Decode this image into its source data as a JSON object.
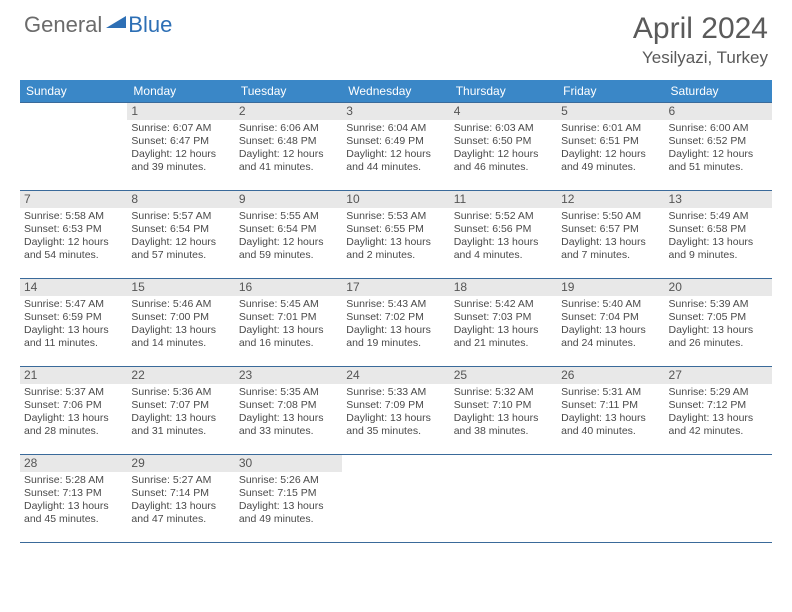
{
  "logo": {
    "text1": "General",
    "text2": "Blue"
  },
  "title": "April 2024",
  "location": "Yesilyazi, Turkey",
  "colors": {
    "header_bg": "#3a87c7",
    "header_text": "#ffffff",
    "border": "#3a6a9a",
    "daynum_bg": "#e8e8e8",
    "text": "#4a4a4a",
    "logo_gray": "#6b6b6b",
    "logo_blue": "#2d6fb5"
  },
  "weekdays": [
    "Sunday",
    "Monday",
    "Tuesday",
    "Wednesday",
    "Thursday",
    "Friday",
    "Saturday"
  ],
  "weeks": [
    [
      null,
      {
        "d": "1",
        "sr": "Sunrise: 6:07 AM",
        "ss": "Sunset: 6:47 PM",
        "dl1": "Daylight: 12 hours",
        "dl2": "and 39 minutes."
      },
      {
        "d": "2",
        "sr": "Sunrise: 6:06 AM",
        "ss": "Sunset: 6:48 PM",
        "dl1": "Daylight: 12 hours",
        "dl2": "and 41 minutes."
      },
      {
        "d": "3",
        "sr": "Sunrise: 6:04 AM",
        "ss": "Sunset: 6:49 PM",
        "dl1": "Daylight: 12 hours",
        "dl2": "and 44 minutes."
      },
      {
        "d": "4",
        "sr": "Sunrise: 6:03 AM",
        "ss": "Sunset: 6:50 PM",
        "dl1": "Daylight: 12 hours",
        "dl2": "and 46 minutes."
      },
      {
        "d": "5",
        "sr": "Sunrise: 6:01 AM",
        "ss": "Sunset: 6:51 PM",
        "dl1": "Daylight: 12 hours",
        "dl2": "and 49 minutes."
      },
      {
        "d": "6",
        "sr": "Sunrise: 6:00 AM",
        "ss": "Sunset: 6:52 PM",
        "dl1": "Daylight: 12 hours",
        "dl2": "and 51 minutes."
      }
    ],
    [
      {
        "d": "7",
        "sr": "Sunrise: 5:58 AM",
        "ss": "Sunset: 6:53 PM",
        "dl1": "Daylight: 12 hours",
        "dl2": "and 54 minutes."
      },
      {
        "d": "8",
        "sr": "Sunrise: 5:57 AM",
        "ss": "Sunset: 6:54 PM",
        "dl1": "Daylight: 12 hours",
        "dl2": "and 57 minutes."
      },
      {
        "d": "9",
        "sr": "Sunrise: 5:55 AM",
        "ss": "Sunset: 6:54 PM",
        "dl1": "Daylight: 12 hours",
        "dl2": "and 59 minutes."
      },
      {
        "d": "10",
        "sr": "Sunrise: 5:53 AM",
        "ss": "Sunset: 6:55 PM",
        "dl1": "Daylight: 13 hours",
        "dl2": "and 2 minutes."
      },
      {
        "d": "11",
        "sr": "Sunrise: 5:52 AM",
        "ss": "Sunset: 6:56 PM",
        "dl1": "Daylight: 13 hours",
        "dl2": "and 4 minutes."
      },
      {
        "d": "12",
        "sr": "Sunrise: 5:50 AM",
        "ss": "Sunset: 6:57 PM",
        "dl1": "Daylight: 13 hours",
        "dl2": "and 7 minutes."
      },
      {
        "d": "13",
        "sr": "Sunrise: 5:49 AM",
        "ss": "Sunset: 6:58 PM",
        "dl1": "Daylight: 13 hours",
        "dl2": "and 9 minutes."
      }
    ],
    [
      {
        "d": "14",
        "sr": "Sunrise: 5:47 AM",
        "ss": "Sunset: 6:59 PM",
        "dl1": "Daylight: 13 hours",
        "dl2": "and 11 minutes."
      },
      {
        "d": "15",
        "sr": "Sunrise: 5:46 AM",
        "ss": "Sunset: 7:00 PM",
        "dl1": "Daylight: 13 hours",
        "dl2": "and 14 minutes."
      },
      {
        "d": "16",
        "sr": "Sunrise: 5:45 AM",
        "ss": "Sunset: 7:01 PM",
        "dl1": "Daylight: 13 hours",
        "dl2": "and 16 minutes."
      },
      {
        "d": "17",
        "sr": "Sunrise: 5:43 AM",
        "ss": "Sunset: 7:02 PM",
        "dl1": "Daylight: 13 hours",
        "dl2": "and 19 minutes."
      },
      {
        "d": "18",
        "sr": "Sunrise: 5:42 AM",
        "ss": "Sunset: 7:03 PM",
        "dl1": "Daylight: 13 hours",
        "dl2": "and 21 minutes."
      },
      {
        "d": "19",
        "sr": "Sunrise: 5:40 AM",
        "ss": "Sunset: 7:04 PM",
        "dl1": "Daylight: 13 hours",
        "dl2": "and 24 minutes."
      },
      {
        "d": "20",
        "sr": "Sunrise: 5:39 AM",
        "ss": "Sunset: 7:05 PM",
        "dl1": "Daylight: 13 hours",
        "dl2": "and 26 minutes."
      }
    ],
    [
      {
        "d": "21",
        "sr": "Sunrise: 5:37 AM",
        "ss": "Sunset: 7:06 PM",
        "dl1": "Daylight: 13 hours",
        "dl2": "and 28 minutes."
      },
      {
        "d": "22",
        "sr": "Sunrise: 5:36 AM",
        "ss": "Sunset: 7:07 PM",
        "dl1": "Daylight: 13 hours",
        "dl2": "and 31 minutes."
      },
      {
        "d": "23",
        "sr": "Sunrise: 5:35 AM",
        "ss": "Sunset: 7:08 PM",
        "dl1": "Daylight: 13 hours",
        "dl2": "and 33 minutes."
      },
      {
        "d": "24",
        "sr": "Sunrise: 5:33 AM",
        "ss": "Sunset: 7:09 PM",
        "dl1": "Daylight: 13 hours",
        "dl2": "and 35 minutes."
      },
      {
        "d": "25",
        "sr": "Sunrise: 5:32 AM",
        "ss": "Sunset: 7:10 PM",
        "dl1": "Daylight: 13 hours",
        "dl2": "and 38 minutes."
      },
      {
        "d": "26",
        "sr": "Sunrise: 5:31 AM",
        "ss": "Sunset: 7:11 PM",
        "dl1": "Daylight: 13 hours",
        "dl2": "and 40 minutes."
      },
      {
        "d": "27",
        "sr": "Sunrise: 5:29 AM",
        "ss": "Sunset: 7:12 PM",
        "dl1": "Daylight: 13 hours",
        "dl2": "and 42 minutes."
      }
    ],
    [
      {
        "d": "28",
        "sr": "Sunrise: 5:28 AM",
        "ss": "Sunset: 7:13 PM",
        "dl1": "Daylight: 13 hours",
        "dl2": "and 45 minutes."
      },
      {
        "d": "29",
        "sr": "Sunrise: 5:27 AM",
        "ss": "Sunset: 7:14 PM",
        "dl1": "Daylight: 13 hours",
        "dl2": "and 47 minutes."
      },
      {
        "d": "30",
        "sr": "Sunrise: 5:26 AM",
        "ss": "Sunset: 7:15 PM",
        "dl1": "Daylight: 13 hours",
        "dl2": "and 49 minutes."
      },
      null,
      null,
      null,
      null
    ]
  ]
}
